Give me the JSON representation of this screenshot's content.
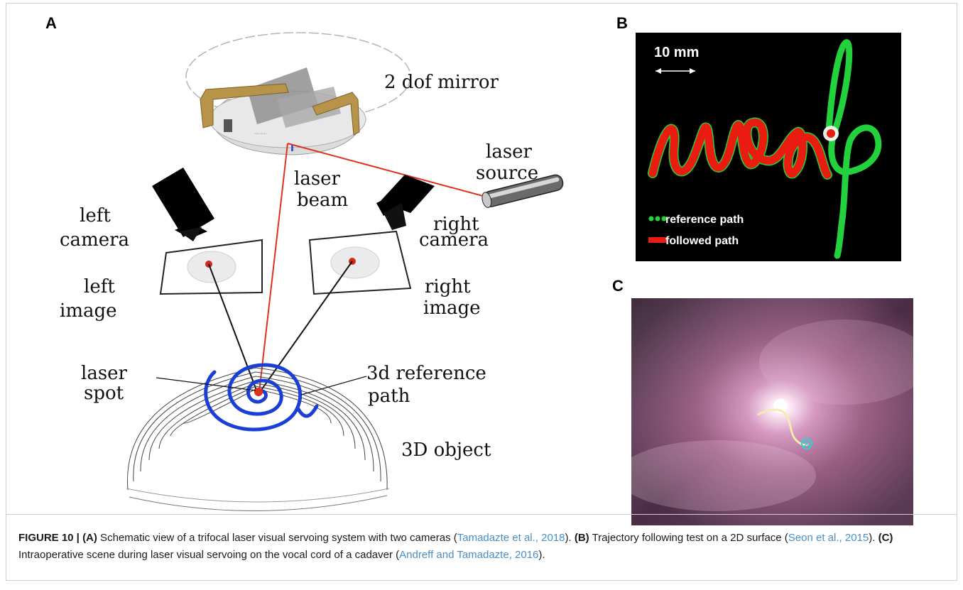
{
  "panels": {
    "a_letter": "A",
    "b_letter": "B",
    "c_letter": "C"
  },
  "schematic": {
    "mirror_label": "2 dof mirror",
    "laser_source_l1": "laser",
    "laser_source_l2": "source",
    "laser_beam_l1": "laser",
    "laser_beam_l2": "beam",
    "left_camera_l1": "left",
    "left_camera_l2": "camera",
    "right_camera_l1": "right",
    "right_camera_l2": "camera",
    "left_image_l1": "left",
    "left_image_l2": "image",
    "right_image_l1": "right",
    "right_image_l2": "image",
    "laser_spot_l1": "laser",
    "laser_spot_l2": "spot",
    "ref_path_l1": "3d reference",
    "ref_path_l2": "path",
    "object_label": "3D object"
  },
  "trajectory": {
    "scale_label": "10 mm",
    "legend_reference": "reference path",
    "legend_followed": "followed path"
  },
  "caption": {
    "figure_label": "FIGURE 10 |",
    "a_tag": "(A)",
    "a_text": " Schematic view of a trifocal laser visual servoing system with two cameras (",
    "a_cite": "Tamadazte et al., 2018",
    "a_end": "). ",
    "b_tag": "(B)",
    "b_text": " Trajectory following test on a 2D surface (",
    "b_cite": "Seon et al., 2015",
    "b_end": "). ",
    "c_tag": "(C)",
    "c_text": " Intraoperative scene during laser visual servoing on the vocal cord of a cadaver (",
    "c_cite": "Andreff and Tamadazte, 2016",
    "c_end": ")."
  }
}
